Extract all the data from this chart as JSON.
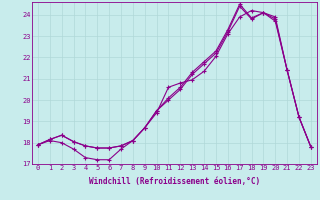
{
  "xlabel": "Windchill (Refroidissement éolien,°C)",
  "xlim": [
    -0.5,
    23.5
  ],
  "ylim": [
    17.0,
    24.6
  ],
  "yticks": [
    17,
    18,
    19,
    20,
    21,
    22,
    23,
    24
  ],
  "xticks": [
    0,
    1,
    2,
    3,
    4,
    5,
    6,
    7,
    8,
    9,
    10,
    11,
    12,
    13,
    14,
    15,
    16,
    17,
    18,
    19,
    20,
    21,
    22,
    23
  ],
  "bg_color": "#c8ecec",
  "grid_color": "#b0d8d8",
  "line_color": "#8b008b",
  "spine_color": "#8b008b",
  "line1_y": [
    17.9,
    18.15,
    18.35,
    18.05,
    17.85,
    17.75,
    17.75,
    17.85,
    18.1,
    18.7,
    19.5,
    20.1,
    20.6,
    21.3,
    21.8,
    22.3,
    23.3,
    24.5,
    23.85,
    24.1,
    23.9,
    21.4,
    19.2,
    17.8
  ],
  "line2_y": [
    17.9,
    18.15,
    18.35,
    18.05,
    17.85,
    17.75,
    17.75,
    17.85,
    18.1,
    18.7,
    19.5,
    20.0,
    20.5,
    21.2,
    21.7,
    22.2,
    23.2,
    24.4,
    23.8,
    24.1,
    23.8,
    21.4,
    19.2,
    17.8
  ],
  "line3_y": [
    17.9,
    18.1,
    18.0,
    17.7,
    17.3,
    17.2,
    17.2,
    17.7,
    18.1,
    18.7,
    19.4,
    20.6,
    20.8,
    20.95,
    21.35,
    22.05,
    23.1,
    23.9,
    24.2,
    24.1,
    23.7,
    21.4,
    19.2,
    17.8
  ],
  "tick_fontsize": 5.0,
  "label_fontsize": 5.5
}
